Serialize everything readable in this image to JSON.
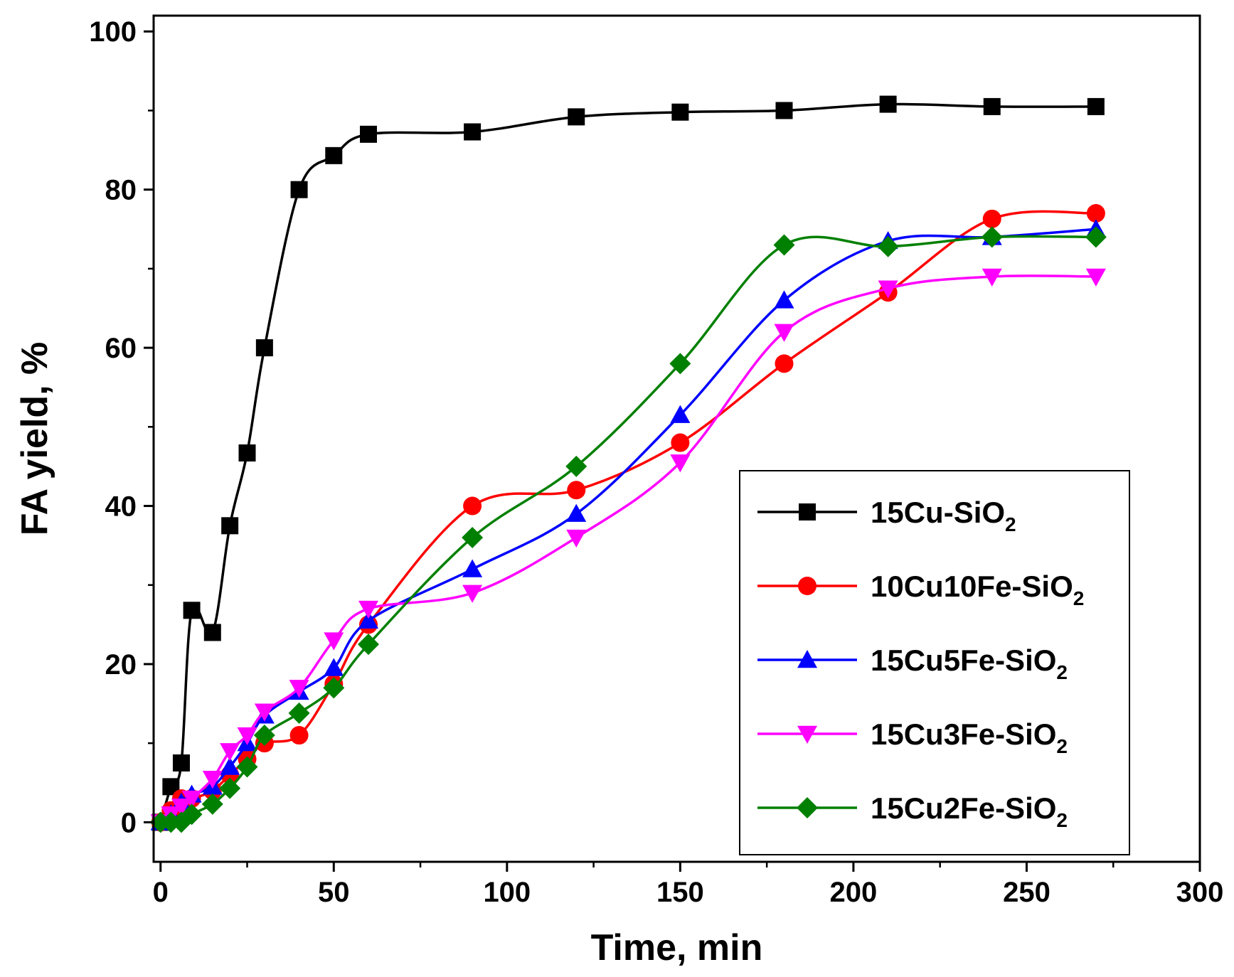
{
  "chart_data": {
    "type": "line",
    "title": "",
    "xlabel": "Time, min",
    "ylabel": "FA yield, %",
    "xlim": [
      -2,
      300
    ],
    "ylim": [
      -5,
      102
    ],
    "xticks": [
      0,
      50,
      100,
      150,
      200,
      250,
      300
    ],
    "yticks": [
      0,
      20,
      40,
      60,
      80,
      100
    ],
    "x_minor_step": 25,
    "y_minor_step": 10,
    "grid": false,
    "legend_position": "bottom-right",
    "series": [
      {
        "name": "15Cu-SiO",
        "subscript": "2",
        "color": "#000000",
        "marker": "square",
        "x": [
          0,
          3,
          6,
          9,
          15,
          20,
          25,
          30,
          40,
          50,
          60,
          90,
          120,
          150,
          180,
          210,
          240,
          270
        ],
        "y": [
          0,
          4.5,
          7.5,
          26.8,
          24,
          37.5,
          46.7,
          60,
          80,
          84.3,
          87,
          87.3,
          89.2,
          89.8,
          90,
          90.8,
          90.5,
          90.5
        ]
      },
      {
        "name": "10Cu10Fe-SiO",
        "subscript": "2",
        "color": "#ff0000",
        "marker": "circle",
        "x": [
          0,
          3,
          6,
          9,
          15,
          20,
          25,
          30,
          40,
          50,
          60,
          90,
          120,
          150,
          180,
          210,
          240,
          270
        ],
        "y": [
          0,
          1.5,
          3,
          3,
          4,
          6,
          8,
          10,
          11,
          17.5,
          25,
          40,
          42,
          48,
          58,
          67,
          76.3,
          77
        ]
      },
      {
        "name": "15Cu5Fe-SiO",
        "subscript": "2",
        "color": "#0000ff",
        "marker": "triangle-up",
        "x": [
          0,
          3,
          6,
          9,
          15,
          20,
          25,
          30,
          40,
          50,
          60,
          90,
          120,
          150,
          180,
          210,
          240,
          270
        ],
        "y": [
          0,
          1,
          2.5,
          3.5,
          4.5,
          7,
          10,
          13.5,
          16.5,
          19.5,
          25.5,
          32,
          39,
          51.5,
          66,
          73.5,
          74,
          75
        ]
      },
      {
        "name": "15Cu3Fe-SiO",
        "subscript": "2",
        "color": "#ff00ff",
        "marker": "triangle-down",
        "x": [
          0,
          3,
          6,
          9,
          15,
          20,
          25,
          30,
          40,
          50,
          60,
          90,
          120,
          150,
          180,
          210,
          240,
          270
        ],
        "y": [
          0,
          1,
          2,
          3,
          5.5,
          9,
          11,
          14,
          17,
          23,
          27,
          29,
          36,
          45.5,
          62,
          67.5,
          69,
          69
        ]
      },
      {
        "name": "15Cu2Fe-SiO",
        "subscript": "2",
        "color": "#008000",
        "marker": "diamond",
        "x": [
          0,
          3,
          6,
          9,
          15,
          20,
          25,
          30,
          40,
          50,
          60,
          90,
          120,
          150,
          180,
          210,
          240,
          270
        ],
        "y": [
          0,
          0,
          0,
          1,
          2.3,
          4.3,
          7,
          11,
          13.8,
          17,
          22.5,
          36,
          45,
          58,
          73,
          72.8,
          74,
          74
        ]
      }
    ]
  }
}
